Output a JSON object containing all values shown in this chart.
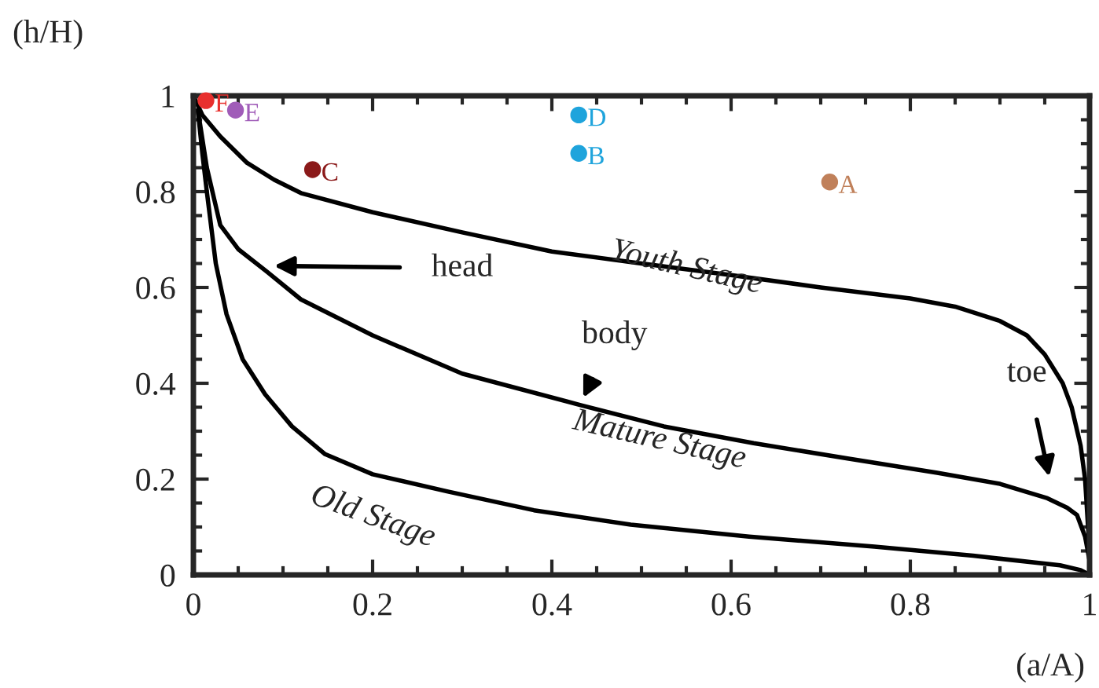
{
  "chart_data": {
    "type": "line",
    "xlabel": "(a/A)",
    "ylabel": "(h/H)",
    "xlim": [
      0,
      1
    ],
    "ylim": [
      0,
      1
    ],
    "xticks": [
      0,
      0.2,
      0.4,
      0.6,
      0.8,
      1
    ],
    "yticks": [
      0,
      0.2,
      0.4,
      0.6,
      0.8,
      1
    ],
    "grid": false,
    "line_style": "solid",
    "series": [
      {
        "name": "Youth Stage",
        "color": "#000000",
        "marker": "none",
        "x": [
          0,
          0.01,
          0.03,
          0.06,
          0.09,
          0.12,
          0.2,
          0.3,
          0.4,
          0.5,
          0.6,
          0.7,
          0.8,
          0.85,
          0.9,
          0.93,
          0.95,
          0.97,
          0.98,
          0.99,
          0.995,
          1
        ],
        "values": [
          1,
          0.96,
          0.915,
          0.86,
          0.825,
          0.797,
          0.757,
          0.715,
          0.675,
          0.65,
          0.626,
          0.6,
          0.577,
          0.56,
          0.53,
          0.5,
          0.46,
          0.4,
          0.35,
          0.27,
          0.2,
          0.05
        ]
      },
      {
        "name": "Mature Stage",
        "color": "#000000",
        "marker": "none",
        "x": [
          0.005,
          0.015,
          0.03,
          0.05,
          0.082,
          0.12,
          0.2,
          0.3,
          0.433,
          0.525,
          0.625,
          0.73,
          0.83,
          0.9,
          0.953,
          0.975,
          0.986,
          0.995,
          1
        ],
        "values": [
          0.97,
          0.85,
          0.73,
          0.68,
          0.633,
          0.575,
          0.5,
          0.42,
          0.354,
          0.31,
          0.275,
          0.243,
          0.213,
          0.19,
          0.16,
          0.14,
          0.125,
          0.08,
          0.03
        ]
      },
      {
        "name": "Old Stage",
        "color": "#000000",
        "marker": "none",
        "x": [
          0.005,
          0.01,
          0.015,
          0.025,
          0.037,
          0.055,
          0.08,
          0.11,
          0.147,
          0.2,
          0.284,
          0.38,
          0.488,
          0.62,
          0.76,
          0.87,
          0.967,
          0.99,
          1
        ],
        "values": [
          0.97,
          0.88,
          0.8,
          0.65,
          0.544,
          0.45,
          0.377,
          0.31,
          0.252,
          0.21,
          0.174,
          0.135,
          0.105,
          0.08,
          0.059,
          0.04,
          0.02,
          0.01,
          0.0
        ]
      },
      {
        "type": "scatter",
        "name": "F",
        "color": "#e8302e",
        "marker": "circle",
        "x": [
          0.014
        ],
        "values": [
          0.99
        ]
      },
      {
        "type": "scatter",
        "name": "E",
        "color": "#a05cb8",
        "marker": "circle",
        "x": [
          0.047
        ],
        "values": [
          0.97
        ]
      },
      {
        "type": "scatter",
        "name": "C",
        "color": "#8b1a1a",
        "marker": "circle",
        "x": [
          0.133
        ],
        "values": [
          0.846
        ]
      },
      {
        "type": "scatter",
        "name": "D",
        "color": "#1fa4dc",
        "marker": "circle",
        "x": [
          0.43
        ],
        "values": [
          0.96
        ]
      },
      {
        "type": "scatter",
        "name": "B",
        "color": "#1fa4dc",
        "marker": "circle",
        "x": [
          0.43
        ],
        "values": [
          0.88
        ]
      },
      {
        "type": "scatter",
        "name": "A",
        "color": "#c0805a",
        "marker": "circle",
        "x": [
          0.71
        ],
        "values": [
          0.82
        ]
      }
    ],
    "annotations": [
      "head",
      "body",
      "toe"
    ]
  }
}
